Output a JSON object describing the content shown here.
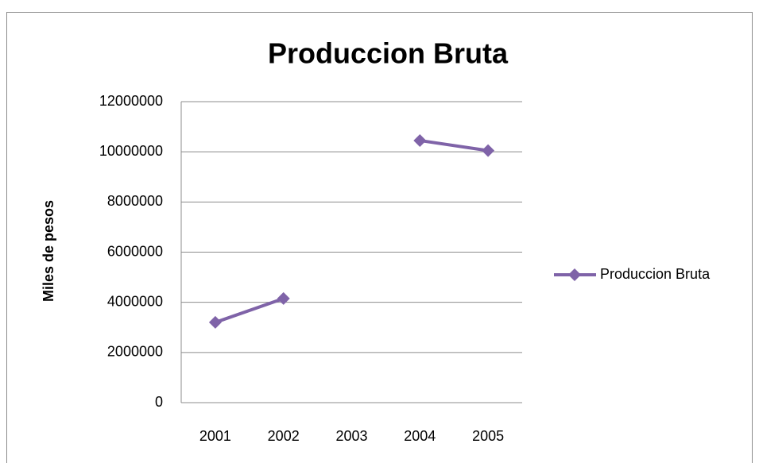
{
  "chart_data": {
    "type": "line",
    "title": "Produccion Bruta",
    "y_label": "Miles de pesos",
    "categories": [
      "2001",
      "2002",
      "2003",
      "2004",
      "2005"
    ],
    "series": [
      {
        "name": "Produccion Bruta",
        "color": "#7f63a8",
        "values": [
          3200000,
          4150000,
          null,
          10450000,
          10050000
        ]
      }
    ],
    "ylim": [
      0,
      12000000
    ],
    "yticks": [
      0,
      2000000,
      4000000,
      6000000,
      8000000,
      10000000,
      12000000
    ],
    "grid": true,
    "legend": "right"
  }
}
